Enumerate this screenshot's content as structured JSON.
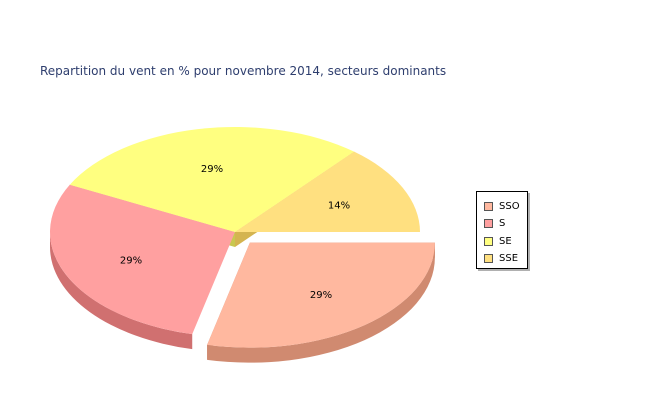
{
  "chart_data": {
    "type": "pie",
    "title": "Repartition du vent en % pour novembre 2014, secteurs dominants",
    "slices": [
      {
        "name": "SSO",
        "value": 29,
        "label": "29%",
        "color": "#ffb89f",
        "side_color": "#d08a70",
        "exploded": true
      },
      {
        "name": "S",
        "value": 29,
        "label": "29%",
        "color": "#ffa0a0",
        "side_color": "#d07070",
        "exploded": false
      },
      {
        "name": "SE",
        "value": 29,
        "label": "29%",
        "color": "#ffff80",
        "side_color": "#c8c850",
        "exploded": false
      },
      {
        "name": "SSE",
        "value": 14,
        "label": "14%",
        "color": "#ffe080",
        "side_color": "#d4b450",
        "exploded": false
      }
    ],
    "legend": {
      "placement": "right",
      "entries": [
        "SSO",
        "S",
        "SE",
        "SSE"
      ]
    },
    "style": "3d-exploded"
  }
}
